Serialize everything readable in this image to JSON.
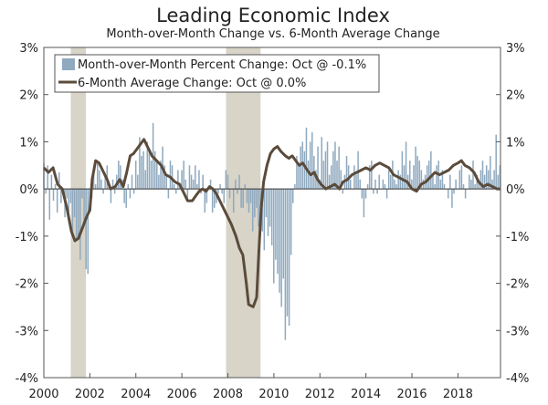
{
  "chart_data": {
    "type": "bar+line",
    "title": "Leading Economic Index",
    "subtitle": "Month-over-Month Change vs. 6-Month Average Change",
    "xlabel": "",
    "ylabel": "",
    "ylim": [
      -4,
      3
    ],
    "xlim": [
      2000,
      2019.85
    ],
    "y_ticks_left": [
      "3%",
      "2%",
      "1%",
      "0%",
      "-1%",
      "-2%",
      "-3%",
      "-4%"
    ],
    "y_ticks_right": [
      "3%",
      "2%",
      "1%",
      "0%",
      "-1%",
      "-2%",
      "-3%",
      "-4%"
    ],
    "y_tick_values": [
      3,
      2,
      1,
      0,
      -1,
      -2,
      -3,
      -4
    ],
    "x_ticks": [
      "2000",
      "2002",
      "2004",
      "2006",
      "2008",
      "2010",
      "2012",
      "2014",
      "2016",
      "2018"
    ],
    "x_tick_values": [
      2000,
      2002,
      2004,
      2006,
      2008,
      2010,
      2012,
      2014,
      2016,
      2018
    ],
    "legend": {
      "position": "top-left",
      "entries": [
        "Month-over-Month Percent Change: Oct @ -0.1%",
        "6-Month Average Change: Oct @ 0.0%"
      ]
    },
    "recessions": [
      {
        "start": 2001.17,
        "end": 2001.83
      },
      {
        "start": 2007.92,
        "end": 2009.42
      }
    ],
    "series": [
      {
        "name": "Month-over-Month Percent Change",
        "type": "bar",
        "color": "#8fa9bf",
        "start": 2000.0,
        "step": 0.0833,
        "values": [
          0.55,
          -0.1,
          0.5,
          -0.65,
          0.3,
          -0.25,
          0.1,
          -0.5,
          0.35,
          -0.3,
          -0.1,
          -0.6,
          -0.2,
          -0.7,
          -0.3,
          -0.9,
          -0.6,
          -1.1,
          -1.0,
          -1.5,
          -0.2,
          -0.7,
          -1.7,
          -1.8,
          -0.3,
          -0.2,
          0.3,
          0.1,
          0.6,
          0.4,
          0.2,
          -0.1,
          0.3,
          0.5,
          0.1,
          -0.3,
          0.2,
          -0.1,
          0.3,
          0.6,
          0.5,
          0.2,
          -0.3,
          -0.4,
          0.1,
          -0.2,
          0.3,
          -0.1,
          0.6,
          0.3,
          1.1,
          0.7,
          0.8,
          0.4,
          1.0,
          0.8,
          0.6,
          1.4,
          0.8,
          0.6,
          0.3,
          0.6,
          0.9,
          0.5,
          0.3,
          -0.2,
          0.6,
          0.5,
          0.1,
          -0.1,
          0.4,
          0.1,
          0.4,
          0.6,
          0.2,
          -0.2,
          0.5,
          0.3,
          0.2,
          0.5,
          0.1,
          0.4,
          -0.1,
          0.3,
          -0.5,
          -0.3,
          0.0,
          0.2,
          -0.5,
          -0.4,
          -0.3,
          -0.1,
          0.1,
          -0.1,
          -0.3,
          0.4,
          0.3,
          -0.2,
          0.0,
          -0.5,
          0.2,
          -0.1,
          0.3,
          -0.4,
          -0.4,
          0.1,
          -0.3,
          -0.5,
          -0.3,
          -0.9,
          -0.6,
          -0.4,
          -0.8,
          -1.0,
          -0.9,
          -1.3,
          -0.6,
          -1.0,
          -0.8,
          -1.2,
          -2.0,
          -1.5,
          -1.8,
          -2.2,
          -2.5,
          -1.9,
          -3.2,
          -2.7,
          -2.9,
          -1.4,
          -0.3,
          0.1,
          0.7,
          0.5,
          0.9,
          1.0,
          0.8,
          1.3,
          0.6,
          1.0,
          1.2,
          0.7,
          0.4,
          0.9,
          0.2,
          1.1,
          0.6,
          0.8,
          1.0,
          0.3,
          0.5,
          0.8,
          1.0,
          0.6,
          0.9,
          0.4,
          -0.1,
          0.3,
          0.7,
          0.5,
          0.2,
          0.0,
          0.5,
          0.3,
          0.8,
          0.2,
          -0.2,
          -0.6,
          -0.2,
          0.1,
          0.5,
          0.6,
          -0.1,
          0.2,
          -0.1,
          0.3,
          0.0,
          0.2,
          0.1,
          -0.2,
          0.4,
          0.3,
          0.6,
          0.2,
          0.1,
          0.4,
          0.3,
          0.8,
          0.5,
          1.0,
          0.3,
          0.6,
          0.2,
          0.5,
          0.9,
          0.7,
          0.6,
          0.4,
          0.2,
          0.3,
          0.5,
          0.6,
          0.8,
          0.3,
          0.1,
          0.5,
          0.6,
          0.2,
          0.4,
          0.1,
          0.0,
          -0.2,
          0.3,
          -0.4,
          -0.1,
          0.2,
          0.0,
          0.4,
          0.5,
          0.1,
          -0.2,
          0.0,
          0.3,
          0.2,
          0.6,
          0.1,
          0.3,
          0.2,
          0.4,
          0.6,
          0.3,
          0.5,
          0.4,
          0.7,
          0.2,
          0.4,
          1.15,
          0.3,
          0.5,
          0.6,
          0.4,
          0.5,
          0.2,
          0.6,
          0.7,
          0.3,
          0.1,
          0.2,
          0.0,
          0.3,
          0.1,
          -0.1,
          0.0,
          0.2,
          0.1,
          0.35,
          0.0,
          -0.1,
          -0.2,
          -0.1
        ]
      },
      {
        "name": "6-Month Average Change",
        "type": "line",
        "color": "#5b4b3b",
        "points": [
          [
            2000.0,
            0.45
          ],
          [
            2000.2,
            0.35
          ],
          [
            2000.4,
            0.45
          ],
          [
            2000.6,
            0.1
          ],
          [
            2000.8,
            0.0
          ],
          [
            2001.0,
            -0.4
          ],
          [
            2001.2,
            -0.9
          ],
          [
            2001.35,
            -1.1
          ],
          [
            2001.5,
            -1.05
          ],
          [
            2001.7,
            -0.8
          ],
          [
            2001.85,
            -0.6
          ],
          [
            2002.0,
            -0.45
          ],
          [
            2002.1,
            0.2
          ],
          [
            2002.25,
            0.6
          ],
          [
            2002.4,
            0.55
          ],
          [
            2002.6,
            0.35
          ],
          [
            2002.75,
            0.2
          ],
          [
            2002.9,
            0.0
          ],
          [
            2003.1,
            0.05
          ],
          [
            2003.3,
            0.2
          ],
          [
            2003.45,
            0.05
          ],
          [
            2003.6,
            0.35
          ],
          [
            2003.75,
            0.7
          ],
          [
            2003.9,
            0.75
          ],
          [
            2004.05,
            0.85
          ],
          [
            2004.2,
            0.95
          ],
          [
            2004.35,
            1.05
          ],
          [
            2004.5,
            0.9
          ],
          [
            2004.7,
            0.7
          ],
          [
            2004.9,
            0.6
          ],
          [
            2005.1,
            0.5
          ],
          [
            2005.3,
            0.3
          ],
          [
            2005.5,
            0.25
          ],
          [
            2005.7,
            0.15
          ],
          [
            2005.9,
            0.1
          ],
          [
            2006.1,
            -0.1
          ],
          [
            2006.25,
            -0.25
          ],
          [
            2006.45,
            -0.25
          ],
          [
            2006.6,
            -0.15
          ],
          [
            2006.75,
            -0.05
          ],
          [
            2006.9,
            0.0
          ],
          [
            2007.05,
            -0.05
          ],
          [
            2007.2,
            0.05
          ],
          [
            2007.35,
            0.0
          ],
          [
            2007.5,
            -0.1
          ],
          [
            2007.65,
            -0.25
          ],
          [
            2007.85,
            -0.45
          ],
          [
            2008.0,
            -0.6
          ],
          [
            2008.15,
            -0.75
          ],
          [
            2008.35,
            -1.0
          ],
          [
            2008.5,
            -1.25
          ],
          [
            2008.65,
            -1.4
          ],
          [
            2008.8,
            -2.0
          ],
          [
            2008.9,
            -2.45
          ],
          [
            2009.1,
            -2.5
          ],
          [
            2009.25,
            -2.3
          ],
          [
            2009.35,
            -1.3
          ],
          [
            2009.45,
            -0.4
          ],
          [
            2009.55,
            0.15
          ],
          [
            2009.7,
            0.5
          ],
          [
            2009.85,
            0.75
          ],
          [
            2010.0,
            0.85
          ],
          [
            2010.15,
            0.9
          ],
          [
            2010.3,
            0.8
          ],
          [
            2010.5,
            0.7
          ],
          [
            2010.65,
            0.65
          ],
          [
            2010.8,
            0.7
          ],
          [
            2010.95,
            0.6
          ],
          [
            2011.1,
            0.5
          ],
          [
            2011.25,
            0.55
          ],
          [
            2011.45,
            0.4
          ],
          [
            2011.6,
            0.3
          ],
          [
            2011.75,
            0.35
          ],
          [
            2011.9,
            0.2
          ],
          [
            2012.05,
            0.1
          ],
          [
            2012.25,
            0.0
          ],
          [
            2012.45,
            0.05
          ],
          [
            2012.65,
            0.1
          ],
          [
            2012.85,
            0.0
          ],
          [
            2013.0,
            0.15
          ],
          [
            2013.2,
            0.2
          ],
          [
            2013.4,
            0.3
          ],
          [
            2013.6,
            0.35
          ],
          [
            2013.8,
            0.4
          ],
          [
            2014.0,
            0.45
          ],
          [
            2014.2,
            0.4
          ],
          [
            2014.4,
            0.5
          ],
          [
            2014.6,
            0.55
          ],
          [
            2014.8,
            0.5
          ],
          [
            2015.0,
            0.45
          ],
          [
            2015.2,
            0.3
          ],
          [
            2015.4,
            0.25
          ],
          [
            2015.6,
            0.2
          ],
          [
            2015.8,
            0.15
          ],
          [
            2016.0,
            0.0
          ],
          [
            2016.2,
            -0.05
          ],
          [
            2016.4,
            0.1
          ],
          [
            2016.6,
            0.15
          ],
          [
            2016.8,
            0.25
          ],
          [
            2017.0,
            0.35
          ],
          [
            2017.2,
            0.3
          ],
          [
            2017.4,
            0.35
          ],
          [
            2017.6,
            0.4
          ],
          [
            2017.8,
            0.5
          ],
          [
            2018.0,
            0.55
          ],
          [
            2018.15,
            0.6
          ],
          [
            2018.3,
            0.5
          ],
          [
            2018.5,
            0.45
          ],
          [
            2018.7,
            0.35
          ],
          [
            2018.9,
            0.15
          ],
          [
            2019.1,
            0.05
          ],
          [
            2019.3,
            0.1
          ],
          [
            2019.5,
            0.05
          ],
          [
            2019.7,
            0.0
          ],
          [
            2019.85,
            0.0
          ]
        ]
      }
    ]
  },
  "colors": {
    "bar": "#8fa9bf",
    "line": "#5b4b3b",
    "recession": "#d8d4c8",
    "axis": "#555555"
  }
}
